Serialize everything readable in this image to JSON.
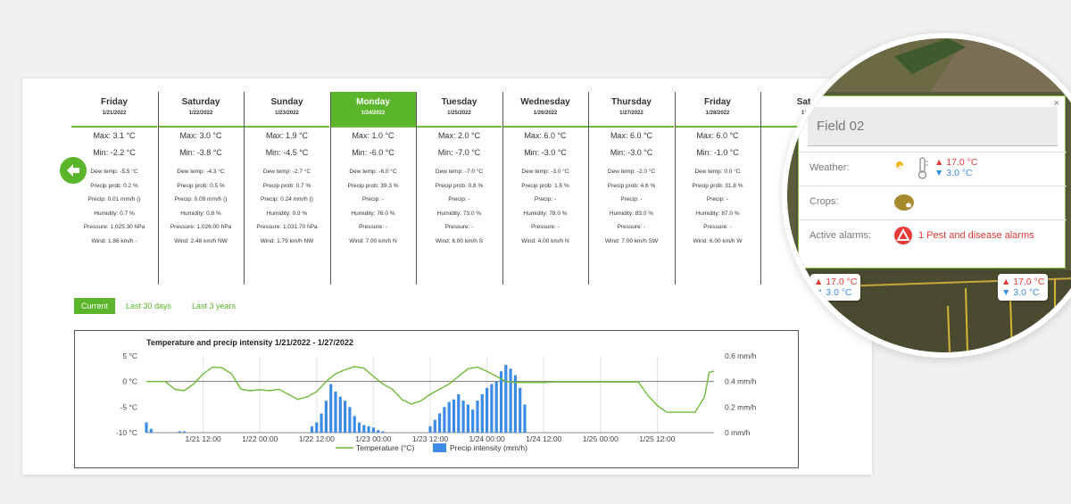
{
  "forecast": {
    "days": [
      {
        "name": "Friday",
        "date": "1/21/2022",
        "max": "Max: 3.1 °C",
        "min": "Min: -2.2 °C",
        "dew": "Dew temp: -5.5 °C",
        "precip_prob": "Precip prob: 0.2 %",
        "precip": "Precip: 0.01 mm/h ()",
        "humidity": "Humidity: 0.7 %",
        "pressure": "Pressure: 1,025.30 hPa",
        "wind": "Wind: 1.86 km/h -"
      },
      {
        "name": "Saturday",
        "date": "1/22/2022",
        "max": "Max: 3.0 °C",
        "min": "Min: -3.8 °C",
        "dew": "Dew temp: -4.3 °C",
        "precip_prob": "Precip prob: 0.5 %",
        "precip": "Precip: 0.09 mm/h ()",
        "humidity": "Humidity: 0.8 %",
        "pressure": "Pressure: 1,026.00 hPa",
        "wind": "Wind: 2.48 km/h NW"
      },
      {
        "name": "Sunday",
        "date": "1/23/2022",
        "max": "Max: 1.9 °C",
        "min": "Min: -4.5 °C",
        "dew": "Dew temp: -2.7 °C",
        "precip_prob": "Precip prob: 0.7 %",
        "precip": "Precip: 0.24 mm/h ()",
        "humidity": "Humidity: 0.9 %",
        "pressure": "Pressure: 1,031.70 hPa",
        "wind": "Wind: 1.79 km/h NW"
      },
      {
        "name": "Monday",
        "date": "1/24/2022",
        "max": "Max: 1.0 °C",
        "min": "Min: -6.0 °C",
        "dew": "Dew temp: -6.0 °C",
        "precip_prob": "Precip prob: 39.3 %",
        "precip": "Precip: -",
        "humidity": "Humidity: 76.0 %",
        "pressure": "Pressure: -",
        "wind": "Wind: 7.00 km/h N"
      },
      {
        "name": "Tuesday",
        "date": "1/25/2022",
        "max": "Max: 2.0 °C",
        "min": "Min: -7.0 °C",
        "dew": "Dew temp: -7.0 °C",
        "precip_prob": "Precip prob: 0.8 %",
        "precip": "Precip: -",
        "humidity": "Humidity: 73.0 %",
        "pressure": "Pressure: -",
        "wind": "Wind: 6.00 km/h S"
      },
      {
        "name": "Wednesday",
        "date": "1/26/2022",
        "max": "Max: 6.0 °C",
        "min": "Min: -3.0 °C",
        "dew": "Dew temp: -3.0 °C",
        "precip_prob": "Precip prob: 1.5 %",
        "precip": "Precip: -",
        "humidity": "Humidity: 78.0 %",
        "pressure": "Pressure: -",
        "wind": "Wind: 4.00 km/h N"
      },
      {
        "name": "Thursday",
        "date": "1/27/2022",
        "max": "Max: 6.0 °C",
        "min": "Min: -3.0 °C",
        "dew": "Dew temp: -2.0 °C",
        "precip_prob": "Precip prob: 4.6 %",
        "precip": "Precip: -",
        "humidity": "Humidity: 83.0 %",
        "pressure": "Pressure: -",
        "wind": "Wind: 7.00 km/h SW"
      },
      {
        "name": "Friday",
        "date": "1/28/2022",
        "max": "Max: 6.0 °C",
        "min": "Min: -1.0 °C",
        "dew": "Dew temp: 0.0 °C",
        "precip_prob": "Precip prob: 31.8 %",
        "precip": "Precip: -",
        "humidity": "Humidity: 87.0 %",
        "pressure": "Pressure: -",
        "wind": "Wind: 6.00 km/h W"
      },
      {
        "name": "Sat",
        "date": "1/",
        "max": "Ma",
        "min": "Mi",
        "dew": "De",
        "precip_prob": "Pre",
        "precip": "P",
        "humidity": "H",
        "pressure": "P",
        "wind": "Wind"
      }
    ],
    "selected_index": 3
  },
  "tabs": [
    {
      "label": "Current",
      "active": true
    },
    {
      "label": "Last 30 days",
      "active": false
    },
    {
      "label": "Last 3 years",
      "active": false
    }
  ],
  "chart_data": {
    "type": "line",
    "title": "Temperature and precip intensity 1/21/2022 - 1/27/2022",
    "x_tick_labels": [
      "1/21 12:00",
      "1/22 00:00",
      "1/22 12:00",
      "1/23 00:00",
      "1/23 12:00",
      "1/24 00:00",
      "1/24 12:00",
      "1/25 00:00",
      "1/25 12:00"
    ],
    "y_left_ticks": [
      "5 °C",
      "0 °C",
      "-5 °C",
      "-10 °C"
    ],
    "y_right_ticks": [
      "0.6 mm/h",
      "0.4 mm/h",
      "0.2 mm/h",
      "0 mm/h"
    ],
    "ylim_left": [
      -10,
      5
    ],
    "ylim_right": [
      0,
      0.6
    ],
    "x_unit": "hours since 1/21 00:00",
    "xlim": [
      0,
      120
    ],
    "series": [
      {
        "name": "Temperature (°C)",
        "axis": "left",
        "color": "#6dbb3a",
        "x": [
          0,
          4,
          6,
          8,
          10,
          12,
          14,
          16,
          18,
          20,
          22,
          24,
          26,
          28,
          30,
          32,
          34,
          36,
          37,
          38,
          40,
          42,
          44,
          46,
          48,
          50,
          52,
          54,
          56,
          58,
          60,
          62,
          64,
          66,
          68,
          70,
          72,
          74,
          76,
          78,
          80,
          82,
          84,
          86,
          88,
          90,
          92,
          94,
          96,
          98,
          100,
          102,
          104,
          106,
          108,
          110,
          112,
          114,
          116,
          118,
          119,
          120
        ],
        "y": [
          0,
          0,
          -1.5,
          -1.8,
          -0.5,
          1.5,
          2.8,
          2.7,
          1.5,
          -1.5,
          -1.8,
          -1.6,
          -1.8,
          -1.5,
          -2.5,
          -3.5,
          -3,
          -2,
          -1,
          0,
          1.5,
          2.3,
          2.9,
          2.6,
          1,
          -0.5,
          -1.5,
          -3.5,
          -4.4,
          -3.8,
          -2.5,
          -1.5,
          -0.5,
          1,
          2.5,
          2.8,
          2,
          1,
          0,
          -0.2,
          -0.2,
          -0.2,
          -0.2,
          -0.1,
          -0.1,
          -0.1,
          -0.1,
          -0.1,
          -0.1,
          -0.1,
          -0.1,
          -0.1,
          -0.1,
          -2.7,
          -4.7,
          -6,
          -6,
          -6,
          -6,
          -3,
          1.8,
          2
        ]
      },
      {
        "name": "Precip intensity (mm/h)",
        "axis": "right",
        "type": "bar",
        "color": "#3c8ce7",
        "x": [
          0,
          1,
          7,
          8,
          35,
          36,
          37,
          38,
          39,
          40,
          41,
          42,
          43,
          44,
          45,
          46,
          47,
          48,
          49,
          50,
          60,
          61,
          62,
          63,
          64,
          65,
          66,
          67,
          68,
          69,
          70,
          71,
          72,
          73,
          74,
          75,
          76,
          77,
          78,
          79,
          80
        ],
        "y": [
          0.08,
          0.03,
          0.01,
          0.01,
          0.05,
          0.08,
          0.15,
          0.25,
          0.38,
          0.32,
          0.28,
          0.25,
          0.2,
          0.13,
          0.08,
          0.06,
          0.05,
          0.04,
          0.02,
          0.01,
          0.05,
          0.1,
          0.15,
          0.2,
          0.24,
          0.26,
          0.3,
          0.25,
          0.22,
          0.18,
          0.25,
          0.3,
          0.35,
          0.38,
          0.4,
          0.48,
          0.53,
          0.5,
          0.45,
          0.35,
          0.22
        ]
      }
    ],
    "legend": [
      "Temperature (°C)",
      "Precip intensity (mm/h)"
    ],
    "legend_position": "bottom"
  },
  "map_popup": {
    "field_name": "Field 02",
    "close": "×",
    "weather_label": "Weather:",
    "weather_max": "▲ 17.0 °C",
    "weather_min": "▼ 3.0 °C",
    "crops_label": "Crops:",
    "alarms_label": "Active alarms:",
    "alarms_text": "1 Pest and disease alarms",
    "mini_left_max": "▲ 17.0 °C",
    "mini_left_min": "▼ 3.0 °C",
    "mini_right_max": "▲ 17.0 °C",
    "mini_right_min": "▼ 3.0 °C"
  }
}
